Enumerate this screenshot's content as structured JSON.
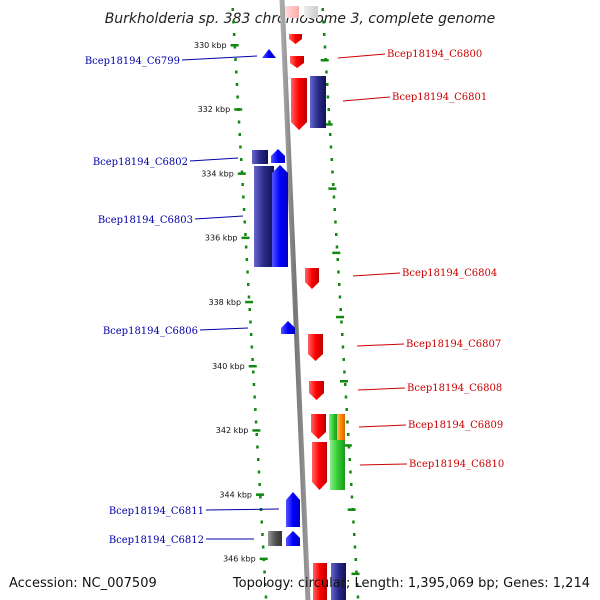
{
  "title": "Burkholderia sp. 383 chromosome 3, complete genome",
  "footer": {
    "accession": "Accession: NC_007509",
    "topology": "Topology: circular; Length: 1,395,069 bp; Genes: 1,214"
  },
  "colors": {
    "forward_label": "#0000aa",
    "reverse_label": "#cc0000",
    "forward_gene": "#0000ff",
    "reverse_gene": "#ff0000",
    "navy_gene": "#2a2a8a",
    "green_gene": "#33cc33",
    "orange_gene": "#ff8800",
    "gray_gene": "#555555",
    "axis": "#888888",
    "dots": "#118811"
  },
  "ticks": [
    {
      "kbp": 330,
      "label": "330 kbp"
    },
    {
      "kbp": 332,
      "label": "332 kbp"
    },
    {
      "kbp": 334,
      "label": "334 kbp"
    },
    {
      "kbp": 336,
      "label": "336 kbp"
    },
    {
      "kbp": 338,
      "label": "338 kbp"
    },
    {
      "kbp": 340,
      "label": "340 kbp"
    },
    {
      "kbp": 342,
      "label": "342 kbp"
    },
    {
      "kbp": 344,
      "label": "344 kbp"
    },
    {
      "kbp": 346,
      "label": "346 kbp"
    }
  ],
  "left_labels": [
    {
      "label": "Bcep18194_C6799"
    },
    {
      "label": "Bcep18194_C6802"
    },
    {
      "label": "Bcep18194_C6803"
    },
    {
      "label": "Bcep18194_C6806"
    },
    {
      "label": "Bcep18194_C6811"
    },
    {
      "label": "Bcep18194_C6812"
    }
  ],
  "right_labels": [
    {
      "label": "Bcep18194_C6800"
    },
    {
      "label": "Bcep18194_C6801"
    },
    {
      "label": "Bcep18194_C6804"
    },
    {
      "label": "Bcep18194_C6807"
    },
    {
      "label": "Bcep18194_C6808"
    },
    {
      "label": "Bcep18194_C6809"
    },
    {
      "label": "Bcep18194_C6810"
    }
  ]
}
